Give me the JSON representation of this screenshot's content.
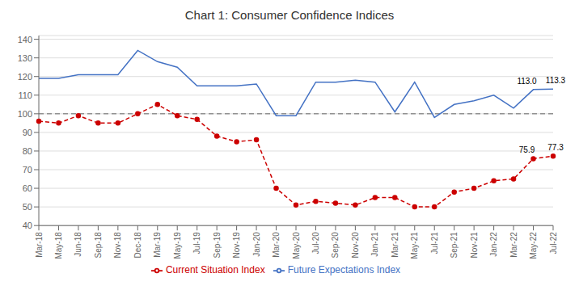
{
  "chart_data": {
    "type": "line",
    "title": "Chart 1: Consumer Confidence Indices",
    "categories": [
      "Mar-18",
      "May-18",
      "Jun-18",
      "Sep-18",
      "Nov-18",
      "Dec-18",
      "Mar-19",
      "May-19",
      "Jul-19",
      "Sep-19",
      "Nov-19",
      "Jan-20",
      "Mar-20",
      "May-20",
      "Jul-20",
      "Sep-20",
      "Nov-20",
      "Jan-21",
      "Mar-21",
      "May-21",
      "Jul-21",
      "Sep-21",
      "Nov-21",
      "Jan-22",
      "Mar-22",
      "May-22",
      "Jul-22"
    ],
    "series": [
      {
        "name": "Current Situation Index",
        "color": "#cc0000",
        "line_style": "dashed",
        "marker": "circle",
        "values": [
          96,
          95,
          99,
          95,
          95,
          100,
          105,
          99,
          97,
          88,
          85,
          86,
          60,
          51,
          53,
          52,
          51,
          55,
          55,
          50,
          50,
          58,
          60,
          64,
          65,
          75.9,
          77.3
        ]
      },
      {
        "name": "Future Expectations Index",
        "color": "#4472c4",
        "line_style": "solid",
        "values": [
          119,
          119,
          121,
          121,
          121,
          134,
          128,
          125,
          115,
          115,
          115,
          116,
          99,
          99,
          117,
          117,
          118,
          117,
          101,
          117,
          98,
          105,
          107,
          110,
          103,
          113.0,
          113.3
        ]
      }
    ],
    "reference_line": 100,
    "annotations": [
      {
        "text": "75.9",
        "x": "May-22",
        "y": 75.9
      },
      {
        "text": "77.3",
        "x": "Jul-22",
        "y": 77.3
      },
      {
        "text": "113.0",
        "x": "May-22",
        "y": 113.0
      },
      {
        "text": "113.3",
        "x": "Jul-22",
        "y": 113.3
      }
    ],
    "ylim": [
      40,
      142
    ],
    "yticks": [
      40,
      50,
      60,
      70,
      80,
      90,
      100,
      110,
      120,
      130,
      140
    ],
    "grid": true,
    "legend": "bottom"
  }
}
